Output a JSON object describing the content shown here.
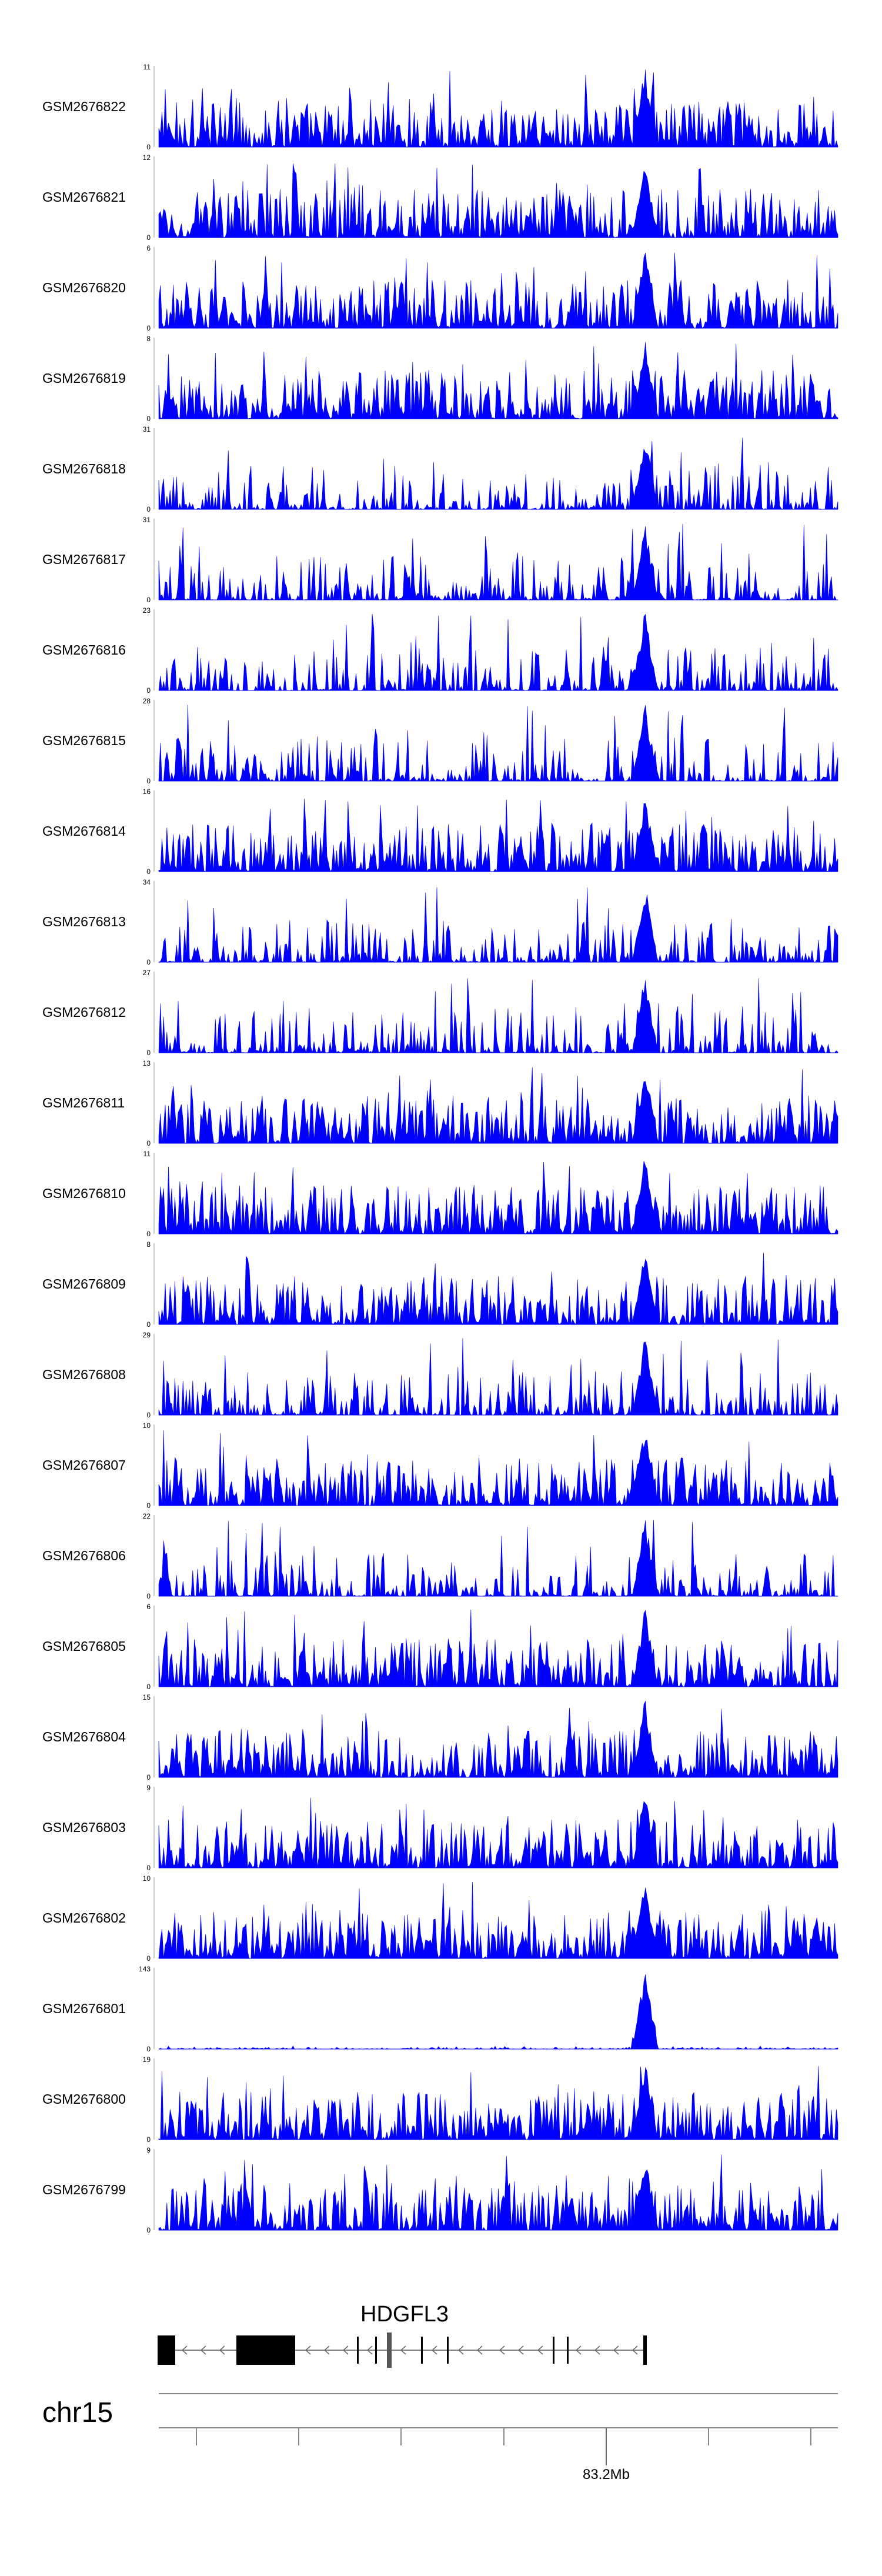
{
  "chart_data": {
    "type": "area",
    "title": "",
    "chromosome": "chr15",
    "gene": "HDGFL3",
    "axis_tick_label": "83.2Mb",
    "series_color": "#0000ff",
    "grid": false,
    "ylim_min": 0,
    "peak_region_fraction": 0.716,
    "tracks": [
      {
        "name": "GSM2676822",
        "ymax": 11,
        "ymax_label": "11",
        "ymin_label": "0"
      },
      {
        "name": "GSM2676821",
        "ymax": 12,
        "ymax_label": "12",
        "ymin_label": "0"
      },
      {
        "name": "GSM2676820",
        "ymax": 6,
        "ymax_label": "6",
        "ymin_label": "0"
      },
      {
        "name": "GSM2676819",
        "ymax": 8,
        "ymax_label": "8",
        "ymin_label": "0"
      },
      {
        "name": "GSM2676818",
        "ymax": 31,
        "ymax_label": "31",
        "ymin_label": "0"
      },
      {
        "name": "GSM2676817",
        "ymax": 31,
        "ymax_label": "31",
        "ymin_label": "0"
      },
      {
        "name": "GSM2676816",
        "ymax": 23,
        "ymax_label": "23",
        "ymin_label": "0"
      },
      {
        "name": "GSM2676815",
        "ymax": 28,
        "ymax_label": "28",
        "ymin_label": "0"
      },
      {
        "name": "GSM2676814",
        "ymax": 16,
        "ymax_label": "16",
        "ymin_label": "0"
      },
      {
        "name": "GSM2676813",
        "ymax": 34,
        "ymax_label": "34",
        "ymin_label": "0"
      },
      {
        "name": "GSM2676812",
        "ymax": 27,
        "ymax_label": "27",
        "ymin_label": "0"
      },
      {
        "name": "GSM2676811",
        "ymax": 13,
        "ymax_label": "13",
        "ymin_label": "0"
      },
      {
        "name": "GSM2676810",
        "ymax": 11,
        "ymax_label": "11",
        "ymin_label": "0"
      },
      {
        "name": "GSM2676809",
        "ymax": 8,
        "ymax_label": "8",
        "ymin_label": "0"
      },
      {
        "name": "GSM2676808",
        "ymax": 29,
        "ymax_label": "29",
        "ymin_label": "0"
      },
      {
        "name": "GSM2676807",
        "ymax": 10,
        "ymax_label": "10",
        "ymin_label": "0"
      },
      {
        "name": "GSM2676806",
        "ymax": 22,
        "ymax_label": "22",
        "ymin_label": "0"
      },
      {
        "name": "GSM2676805",
        "ymax": 6,
        "ymax_label": "6",
        "ymin_label": "0"
      },
      {
        "name": "GSM2676804",
        "ymax": 15,
        "ymax_label": "15",
        "ymin_label": "0"
      },
      {
        "name": "GSM2676803",
        "ymax": 9,
        "ymax_label": "9",
        "ymin_label": "0"
      },
      {
        "name": "GSM2676802",
        "ymax": 10,
        "ymax_label": "10",
        "ymin_label": "0"
      },
      {
        "name": "GSM2676801",
        "ymax": 143,
        "ymax_label": "143",
        "ymin_label": "0"
      },
      {
        "name": "GSM2676800",
        "ymax": 19,
        "ymax_label": "19",
        "ymin_label": "0"
      },
      {
        "name": "GSM2676799",
        "ymax": 9,
        "ymax_label": "9",
        "ymin_label": "0"
      }
    ]
  }
}
